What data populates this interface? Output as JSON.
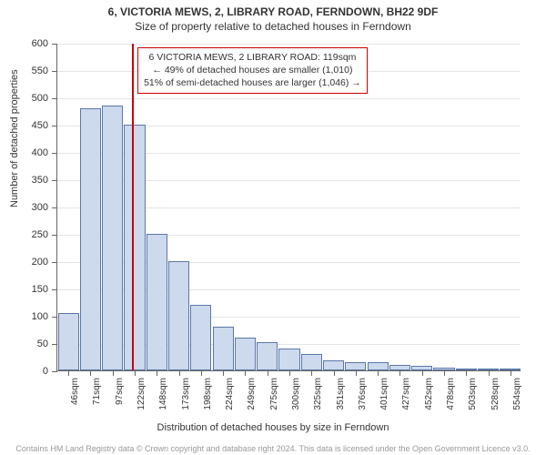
{
  "title_main": "6, VICTORIA MEWS, 2, LIBRARY ROAD, FERNDOWN, BH22 9DF",
  "title_sub": "Size of property relative to detached houses in Ferndown",
  "chart": {
    "type": "histogram",
    "ylabel": "Number of detached properties",
    "xlabel": "Distribution of detached houses by size in Ferndown",
    "ylim": [
      0,
      600
    ],
    "ytick_step": 50,
    "x_categories": [
      "46sqm",
      "71sqm",
      "97sqm",
      "122sqm",
      "148sqm",
      "173sqm",
      "198sqm",
      "224sqm",
      "249sqm",
      "275sqm",
      "300sqm",
      "325sqm",
      "351sqm",
      "376sqm",
      "401sqm",
      "427sqm",
      "452sqm",
      "478sqm",
      "503sqm",
      "528sqm",
      "554sqm"
    ],
    "values": [
      105,
      480,
      485,
      450,
      250,
      200,
      120,
      80,
      60,
      52,
      40,
      30,
      18,
      15,
      15,
      10,
      8,
      5,
      3,
      2,
      2
    ],
    "bar_fill": "#cdd9ec",
    "bar_stroke": "#5a78a8",
    "bar_stroke_width": 1,
    "grid_color": "#e6e6e6",
    "axis_color": "#666666",
    "background_color": "#ffffff",
    "title_fontsize": 12,
    "label_fontsize": 11,
    "tick_fontsize": 10,
    "reference_line": {
      "x_value": 119,
      "color": "#cc0000",
      "width": 2
    }
  },
  "annotation": {
    "line1": "6 VICTORIA MEWS, 2 LIBRARY ROAD: 119sqm",
    "line2": "← 49% of detached houses are smaller (1,010)",
    "line3": "51% of semi-detached houses are larger (1,046) →",
    "border_color": "#cc0000",
    "fontsize": 10.5
  },
  "copyright": "Contains HM Land Registry data © Crown copyright and database right 2024. This data is licensed under the Open Government Licence v3.0."
}
